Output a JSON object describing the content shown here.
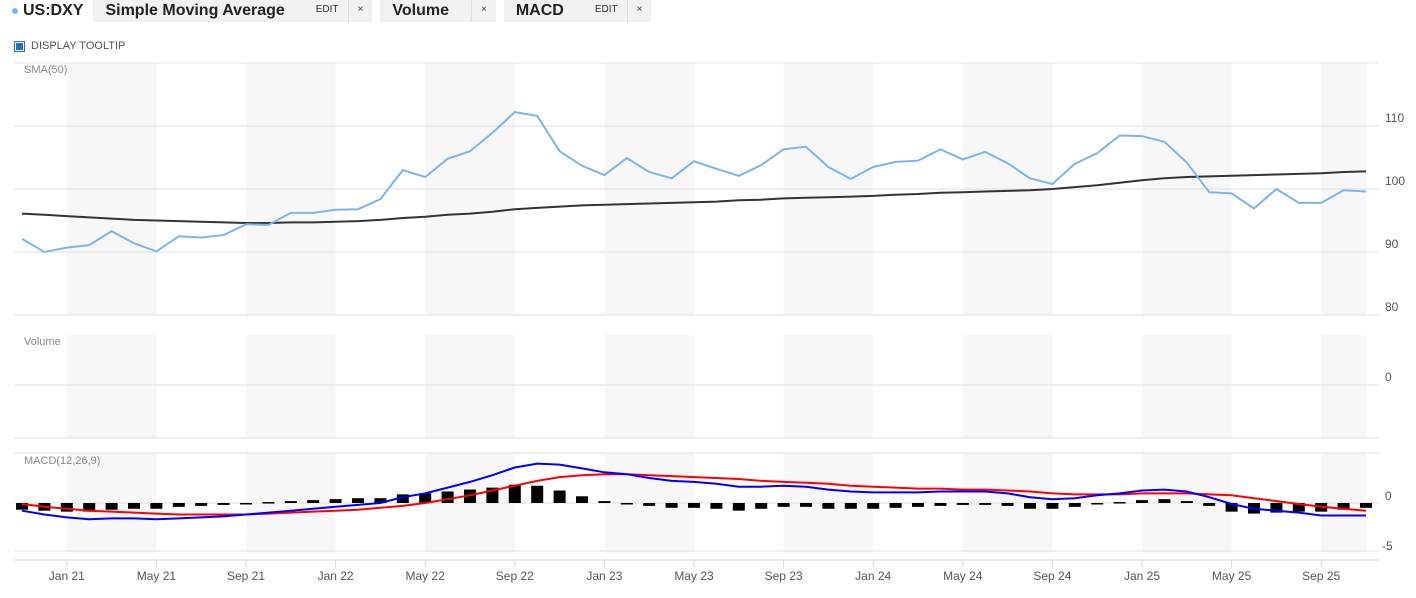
{
  "header": {
    "symbol": "US:DXY",
    "tabs": [
      {
        "label": "Simple Moving Average",
        "edit": "EDIT",
        "close": "×"
      },
      {
        "label": "Volume",
        "close": "×"
      },
      {
        "label": "MACD",
        "edit": "EDIT",
        "close": "×"
      }
    ]
  },
  "tooltip_toggle": {
    "label": "DISPLAY TOOLTIP",
    "checked": true
  },
  "chart_data": {
    "type": "line",
    "x_start": "Nov 2020",
    "frequency": "monthly",
    "x_tick_labels": [
      "Jan 21",
      "May 21",
      "Sep 21",
      "Jan 22",
      "May 22",
      "Sep 22",
      "Jan 23",
      "May 23",
      "Sep 23",
      "Jan 24",
      "May 24",
      "Sep 24",
      "Jan 25",
      "May 25",
      "Sep 25"
    ],
    "grid": true,
    "colors": {
      "price": "#7cb5ec",
      "sma": "#333333",
      "macd": "#0000ff",
      "signal": "#ff0000",
      "histogram": "#000000",
      "band": "#f7f7f7"
    },
    "panes": [
      {
        "label": "SMA(50)",
        "ylim": [
          80,
          120
        ],
        "y_ticks": [
          "80",
          "90",
          "100",
          "110"
        ],
        "series": [
          {
            "values": [
              92.1,
              90.0,
              90.7,
              91.1,
              93.3,
              91.4,
              90.1,
              92.5,
              92.3,
              92.7,
              94.4,
              94.3,
              96.2,
              96.2,
              96.7,
              96.8,
              98.4,
              103.0,
              101.9,
              104.8,
              106.0,
              108.9,
              112.2,
              111.6,
              106.0,
              103.7,
              102.2,
              104.9,
              102.7,
              101.7,
              104.4,
              103.2,
              102.1,
              103.8,
              106.3,
              106.7,
              103.5,
              101.6,
              103.5,
              104.3,
              104.5,
              106.3,
              104.7,
              105.9,
              104.1,
              101.7,
              100.8,
              104.0,
              105.7,
              108.5,
              108.4,
              107.5,
              104.2,
              99.5,
              99.3,
              96.9,
              100.0,
              97.8,
              97.8,
              99.8,
              99.6
            ]
          },
          {
            "values": [
              96.1,
              95.9,
              95.7,
              95.5,
              95.3,
              95.1,
              95.0,
              94.9,
              94.8,
              94.7,
              94.6,
              94.6,
              94.7,
              94.7,
              94.8,
              94.9,
              95.1,
              95.4,
              95.6,
              95.9,
              96.1,
              96.4,
              96.8,
              97.0,
              97.2,
              97.4,
              97.5,
              97.6,
              97.7,
              97.8,
              97.9,
              98.0,
              98.2,
              98.3,
              98.5,
              98.6,
              98.7,
              98.8,
              98.9,
              99.1,
              99.2,
              99.4,
              99.5,
              99.6,
              99.7,
              99.8,
              100.0,
              100.3,
              100.6,
              101.0,
              101.4,
              101.7,
              101.9,
              102.0,
              102.1,
              102.2,
              102.3,
              102.4,
              102.5,
              102.7,
              102.8
            ]
          }
        ]
      },
      {
        "label": "Volume",
        "y_ticks": [
          "0"
        ],
        "series": []
      },
      {
        "label": "MACD(12,26,9)",
        "ylim": [
          -5,
          5
        ],
        "y_ticks": [
          "0",
          "-5"
        ],
        "macd": [
          -0.8,
          -1.2,
          -1.5,
          -1.7,
          -1.6,
          -1.6,
          -1.7,
          -1.6,
          -1.5,
          -1.4,
          -1.2,
          -1.0,
          -0.8,
          -0.6,
          -0.4,
          -0.2,
          0.0,
          0.6,
          1.0,
          1.6,
          2.2,
          2.9,
          3.7,
          4.1,
          4.0,
          3.6,
          3.2,
          3.0,
          2.6,
          2.3,
          2.2,
          2.0,
          1.7,
          1.7,
          1.8,
          1.7,
          1.4,
          1.2,
          1.1,
          1.1,
          1.1,
          1.2,
          1.2,
          1.2,
          1.0,
          0.6,
          0.4,
          0.5,
          0.8,
          1.0,
          1.3,
          1.4,
          1.2,
          0.6,
          -0.1,
          -0.6,
          -0.8,
          -1.0,
          -1.3,
          -1.3,
          -1.3
        ],
        "signal": [
          -0.1,
          -0.4,
          -0.6,
          -0.8,
          -0.9,
          -1.0,
          -1.1,
          -1.2,
          -1.2,
          -1.2,
          -1.2,
          -1.1,
          -1.0,
          -0.9,
          -0.8,
          -0.7,
          -0.5,
          -0.3,
          0.0,
          0.4,
          0.8,
          1.3,
          1.8,
          2.3,
          2.7,
          2.9,
          3.0,
          3.0,
          2.9,
          2.8,
          2.7,
          2.6,
          2.5,
          2.3,
          2.2,
          2.1,
          2.0,
          1.8,
          1.7,
          1.6,
          1.5,
          1.5,
          1.4,
          1.4,
          1.3,
          1.2,
          1.0,
          0.9,
          0.9,
          0.9,
          1.0,
          1.0,
          1.0,
          0.9,
          0.8,
          0.5,
          0.2,
          -0.1,
          -0.4,
          -0.6,
          -0.8
        ],
        "histogram": [
          -0.7,
          -0.8,
          -0.9,
          -0.9,
          -0.7,
          -0.6,
          -0.6,
          -0.4,
          -0.3,
          -0.2,
          0.0,
          0.1,
          0.2,
          0.3,
          0.4,
          0.5,
          0.5,
          0.9,
          1.0,
          1.2,
          1.4,
          1.6,
          1.9,
          1.8,
          1.3,
          0.7,
          0.2,
          0.0,
          -0.3,
          -0.5,
          -0.5,
          -0.6,
          -0.8,
          -0.6,
          -0.4,
          -0.4,
          -0.6,
          -0.6,
          -0.6,
          -0.5,
          -0.4,
          -0.3,
          -0.2,
          -0.2,
          -0.3,
          -0.6,
          -0.6,
          -0.4,
          -0.1,
          0.1,
          0.3,
          0.4,
          0.2,
          -0.3,
          -0.9,
          -1.1,
          -1.0,
          -0.9,
          -0.9,
          -0.7,
          -0.5
        ]
      }
    ]
  }
}
